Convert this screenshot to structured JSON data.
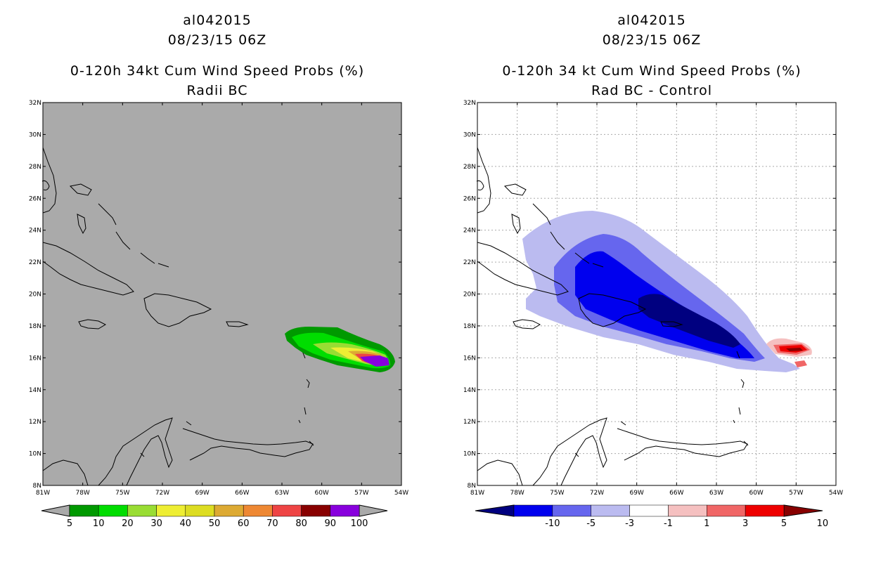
{
  "left": {
    "title_id": "al042015",
    "title_time": "08/23/15 06Z",
    "title_product": "0-120h 34kt Cum Wind Speed Probs (%)",
    "title_sub": "Radii BC",
    "lat_labels": [
      "32N",
      "30N",
      "28N",
      "26N",
      "24N",
      "22N",
      "20N",
      "18N",
      "16N",
      "14N",
      "12N",
      "10N",
      "8N"
    ],
    "lon_labels": [
      "81W",
      "78W",
      "75W",
      "72W",
      "69W",
      "66W",
      "63W",
      "60W",
      "57W",
      "54W"
    ],
    "colorbar": {
      "labels": [
        "5",
        "10",
        "20",
        "30",
        "40",
        "50",
        "60",
        "70",
        "80",
        "90",
        "100"
      ],
      "colors": [
        "#009900",
        "#00dd00",
        "#99dd33",
        "#eeee33",
        "#dddd22",
        "#ddaa33",
        "#ee8833",
        "#ee4444",
        "#880000",
        "#8800dd"
      ]
    },
    "background_color": "#aaaaaa"
  },
  "right": {
    "title_id": "al042015",
    "title_time": "08/23/15 06Z",
    "title_product": "0-120h 34 kt Cum Wind Speed Probs (%)",
    "title_sub": "Rad BC - Control",
    "lat_labels": [
      "32N",
      "30N",
      "28N",
      "26N",
      "24N",
      "22N",
      "20N",
      "18N",
      "16N",
      "14N",
      "12N",
      "10N",
      "8N"
    ],
    "lon_labels": [
      "81W",
      "78W",
      "75W",
      "72W",
      "69W",
      "66W",
      "63W",
      "60W",
      "57W",
      "54W"
    ],
    "colorbar": {
      "labels": [
        "-10",
        "-5",
        "-3",
        "-1",
        "1",
        "3",
        "5",
        "10"
      ],
      "colors": [
        "#000080",
        "#0000ee",
        "#6666ee",
        "#bbbbf0",
        "#ffffff",
        "#f5c0c0",
        "#f06666",
        "#ee0000",
        "#880000"
      ]
    }
  }
}
